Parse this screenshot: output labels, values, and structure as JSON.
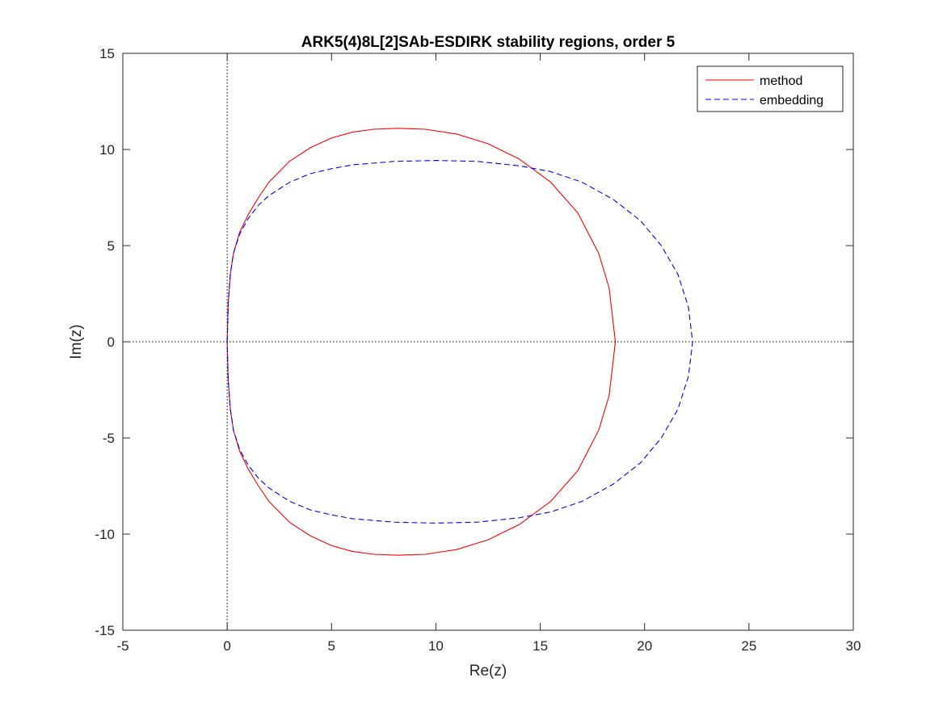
{
  "chart_data": {
    "type": "line",
    "title": "ARK5(4)8L[2]SAb-ESDIRK stability regions, order 5",
    "xlabel": "Re(z)",
    "ylabel": "Im(z)",
    "xlim": [
      -5,
      30
    ],
    "ylim": [
      -15,
      15
    ],
    "xticks": [
      -5,
      0,
      5,
      10,
      15,
      20,
      25,
      30
    ],
    "yticks": [
      -15,
      -10,
      -5,
      0,
      5,
      10,
      15
    ],
    "xtick_labels": [
      "-5",
      "0",
      "5",
      "10",
      "15",
      "20",
      "25",
      "30"
    ],
    "ytick_labels": [
      "-15",
      "-10",
      "-5",
      "0",
      "5",
      "10",
      "15"
    ],
    "grid": false,
    "reference_lines": {
      "x0": 0,
      "y0": 0,
      "style": "dotted"
    },
    "legend_position": "top-right",
    "series": [
      {
        "name": "method",
        "color": "#ff0000",
        "style": "solid",
        "x": [
          0.0,
          0.05,
          0.15,
          0.3,
          0.6,
          1.0,
          1.5,
          2.0,
          3.0,
          4.0,
          5.0,
          6.0,
          7.0,
          8.2,
          9.5,
          11.0,
          12.5,
          14.0,
          15.5,
          16.8,
          17.8,
          18.3,
          18.6,
          18.3,
          17.8,
          16.8,
          15.5,
          14.0,
          12.5,
          11.0,
          9.5,
          8.2,
          7.0,
          6.0,
          5.0,
          4.0,
          3.0,
          2.0,
          1.5,
          1.0,
          0.6,
          0.3,
          0.15,
          0.05,
          0.0
        ],
        "y": [
          0.0,
          2.0,
          3.5,
          4.6,
          5.7,
          6.6,
          7.5,
          8.3,
          9.4,
          10.1,
          10.6,
          10.9,
          11.05,
          11.1,
          11.05,
          10.8,
          10.3,
          9.5,
          8.3,
          6.7,
          4.6,
          2.8,
          0.0,
          -2.8,
          -4.6,
          -6.7,
          -8.3,
          -9.5,
          -10.3,
          -10.8,
          -11.05,
          -11.1,
          -11.05,
          -10.9,
          -10.6,
          -10.1,
          -9.4,
          -8.3,
          -7.5,
          -6.6,
          -5.7,
          -4.6,
          -3.5,
          -2.0,
          0.0
        ]
      },
      {
        "name": "embedding",
        "color": "#0000ff",
        "style": "dashed",
        "x": [
          0.0,
          0.05,
          0.15,
          0.3,
          0.6,
          1.0,
          1.5,
          2.0,
          3.0,
          4.0,
          5.0,
          6.0,
          8.0,
          10.0,
          12.0,
          14.0,
          15.5,
          17.0,
          18.5,
          19.8,
          20.8,
          21.6,
          22.1,
          22.3,
          22.1,
          21.6,
          20.8,
          19.8,
          18.5,
          17.0,
          15.5,
          14.0,
          12.0,
          10.0,
          8.0,
          6.0,
          5.0,
          4.0,
          3.0,
          2.0,
          1.5,
          1.0,
          0.6,
          0.3,
          0.15,
          0.05,
          0.0
        ],
        "y": [
          0.0,
          2.0,
          3.5,
          4.6,
          5.6,
          6.4,
          7.1,
          7.6,
          8.3,
          8.75,
          9.0,
          9.2,
          9.38,
          9.43,
          9.38,
          9.15,
          8.85,
          8.3,
          7.4,
          6.3,
          5.0,
          3.5,
          1.8,
          0.0,
          -1.8,
          -3.5,
          -5.0,
          -6.3,
          -7.4,
          -8.3,
          -8.85,
          -9.15,
          -9.38,
          -9.43,
          -9.38,
          -9.2,
          -9.0,
          -8.75,
          -8.3,
          -7.6,
          -7.1,
          -6.4,
          -5.6,
          -4.6,
          -3.5,
          -2.0,
          0.0
        ]
      }
    ]
  }
}
